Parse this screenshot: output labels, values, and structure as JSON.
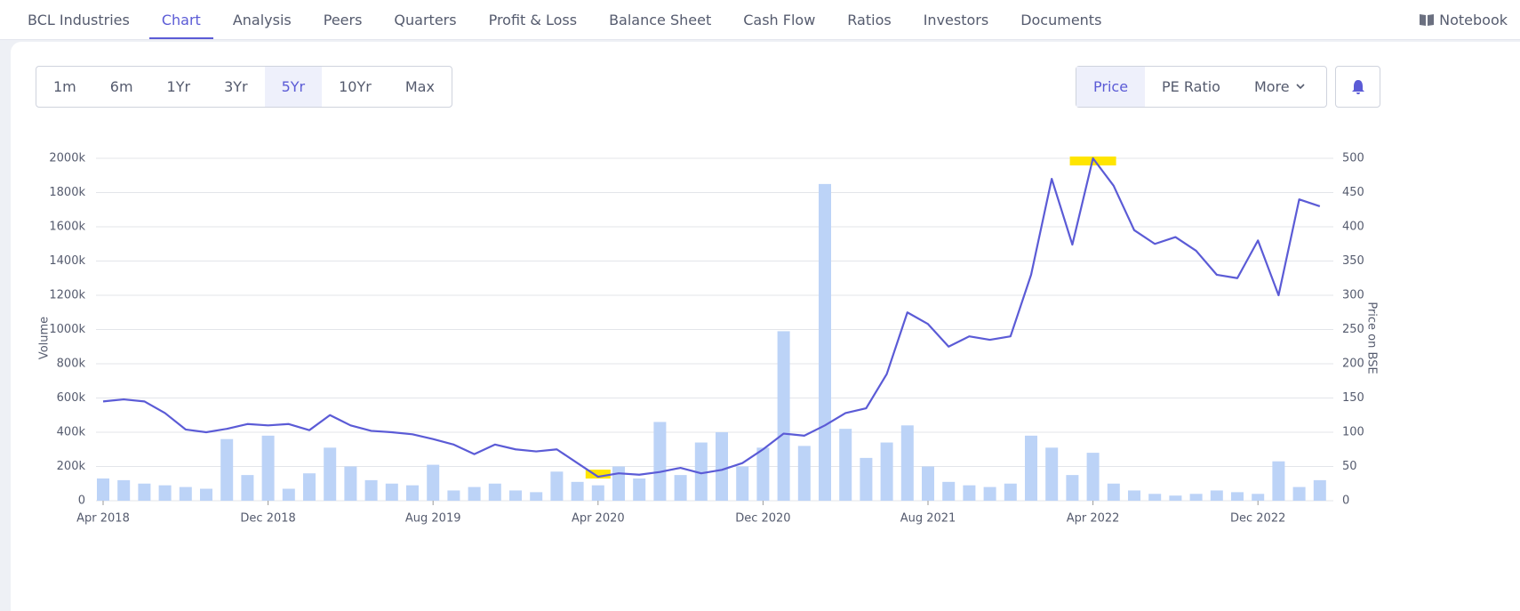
{
  "nav": {
    "tabs": [
      "BCL Industries",
      "Chart",
      "Analysis",
      "Peers",
      "Quarters",
      "Profit & Loss",
      "Balance Sheet",
      "Cash Flow",
      "Ratios",
      "Investors",
      "Documents"
    ],
    "active": 1,
    "notebook": "Notebook"
  },
  "periods": {
    "options": [
      "1m",
      "6m",
      "1Yr",
      "3Yr",
      "5Yr",
      "10Yr",
      "Max"
    ],
    "active": 4
  },
  "metrics": {
    "options": [
      "Price",
      "PE Ratio"
    ],
    "active": 0,
    "more": "More"
  },
  "chart_data": {
    "type": "combo",
    "ylabel": "Volume",
    "y2label": "Price on BSE",
    "categories": [
      "Apr 2018",
      null,
      null,
      null,
      null,
      null,
      null,
      null,
      "Dec 2018",
      null,
      null,
      null,
      null,
      null,
      null,
      null,
      "Aug 2019",
      null,
      null,
      null,
      null,
      null,
      null,
      null,
      "Apr 2020",
      null,
      null,
      null,
      null,
      null,
      null,
      null,
      "Dec 2020",
      null,
      null,
      null,
      null,
      null,
      null,
      null,
      "Aug 2021",
      null,
      null,
      null,
      null,
      null,
      null,
      null,
      "Apr 2022",
      null,
      null,
      null,
      null,
      null,
      null,
      null,
      "Dec 2022",
      null,
      null,
      null
    ],
    "ylim": [
      0,
      2000000
    ],
    "yticks": [
      {
        "value": 0,
        "label": "0"
      },
      {
        "value": 200000,
        "label": "200k"
      },
      {
        "value": 400000,
        "label": "400k"
      },
      {
        "value": 600000,
        "label": "600k"
      },
      {
        "value": 800000,
        "label": "800k"
      },
      {
        "value": 1000000,
        "label": "1000k"
      },
      {
        "value": 1200000,
        "label": "1200k"
      },
      {
        "value": 1400000,
        "label": "1400k"
      },
      {
        "value": 1600000,
        "label": "1600k"
      },
      {
        "value": 1800000,
        "label": "1800k"
      },
      {
        "value": 2000000,
        "label": "2000k"
      }
    ],
    "y2lim": [
      0,
      500
    ],
    "y2ticks": [
      0,
      50,
      100,
      150,
      200,
      250,
      300,
      350,
      400,
      450,
      500
    ],
    "grid": true,
    "highlight_color": "#ffe500",
    "series": [
      {
        "type": "bar",
        "color": "#bcd3f7",
        "values": [
          130000,
          120000,
          100000,
          90000,
          80000,
          70000,
          360000,
          150000,
          380000,
          70000,
          160000,
          310000,
          200000,
          120000,
          100000,
          90000,
          210000,
          60000,
          80000,
          100000,
          60000,
          50000,
          170000,
          110000,
          90000,
          200000,
          130000,
          460000,
          150000,
          340000,
          400000,
          200000,
          310000,
          990000,
          320000,
          1850000,
          420000,
          250000,
          340000,
          440000,
          200000,
          110000,
          90000,
          80000,
          100000,
          380000,
          310000,
          150000,
          280000,
          100000,
          60000,
          40000,
          30000,
          40000,
          60000,
          50000,
          40000,
          230000,
          80000,
          120000
        ]
      },
      {
        "type": "line",
        "axis": "y2",
        "color": "#5b5bd6",
        "values": [
          145,
          148,
          145,
          128,
          104,
          100,
          105,
          112,
          110,
          112,
          103,
          125,
          110,
          102,
          100,
          97,
          90,
          82,
          68,
          82,
          75,
          72,
          75,
          55,
          35,
          40,
          38,
          42,
          48,
          40,
          45,
          55,
          75,
          98,
          95,
          110,
          128,
          135,
          185,
          275,
          258,
          225,
          240,
          235,
          240,
          330,
          470,
          374,
          500,
          460,
          395,
          375,
          385,
          365,
          330,
          325,
          380,
          300,
          440,
          430
        ]
      }
    ]
  }
}
